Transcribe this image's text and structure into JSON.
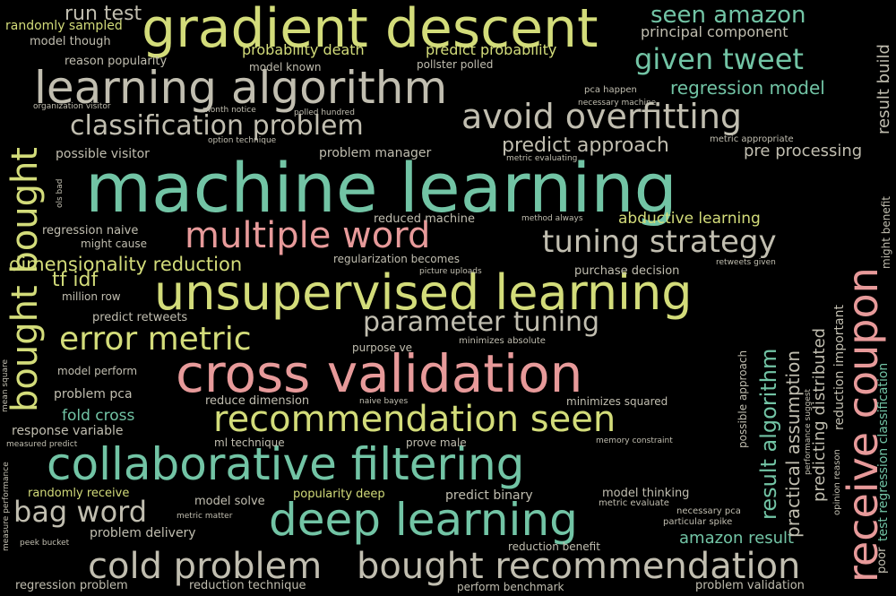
{
  "palette": {
    "background": "#000000",
    "teal": "#72c4a5",
    "yellow": "#d3dc7a",
    "pink": "#e79a9a",
    "grey": "#c1beb0"
  },
  "words": [
    "machine learning",
    "gradient descent",
    "learning algorithm",
    "cross validation",
    "unsupervised learning",
    "collaborative filtering",
    "deep learning",
    "recommendation seen",
    "bought recommendation",
    "cold problem",
    "avoid overfitting",
    "multiple word",
    "tuning strategy",
    "error metric",
    "parameter tuning",
    "classification problem",
    "given tweet",
    "seen amazon",
    "bag word",
    "run test",
    "predict approach",
    "regression model",
    "pre processing",
    "dimensionality reduction",
    "tf idf",
    "abductive learning",
    "amazon result",
    "principal component",
    "probability death",
    "predict probability",
    "randomly sampled",
    "model though",
    "reason popularity",
    "model known",
    "pollster polled",
    "pca happen",
    "necessary machine",
    "organization visitor",
    "month notice",
    "polled hundred",
    "option technique",
    "metric appropriate",
    "possible visitor",
    "problem manager",
    "metric evaluating",
    "reduced machine",
    "method always",
    "regression naive",
    "might cause",
    "regularization becomes",
    "picture uploads",
    "purchase decision",
    "retweets given",
    "million row",
    "predict retweets",
    "purpose ve",
    "minimizes absolute",
    "model perform",
    "problem pca",
    "reduce dimension",
    "naive bayes",
    "minimizes squared",
    "fold cross",
    "response variable",
    "ml technique",
    "prove male",
    "memory constraint",
    "measured predict",
    "randomly receive",
    "model solve",
    "popularity deep",
    "predict binary",
    "model thinking",
    "metric evaluate",
    "necessary pca",
    "metric matter",
    "particular spike",
    "problem delivery",
    "peek bucket",
    "reduction benefit",
    "regression problem",
    "reduction technique",
    "perform benchmark",
    "problem validation",
    "bought bought",
    "receive coupon",
    "result algorithm",
    "practical assumption",
    "predicting distributed",
    "reduction important",
    "might benefit",
    "result build",
    "test regression classification",
    "poor",
    "opinion reason",
    "performance suggest",
    "possible approach",
    "mean square",
    "measure performance",
    "ols bad"
  ]
}
